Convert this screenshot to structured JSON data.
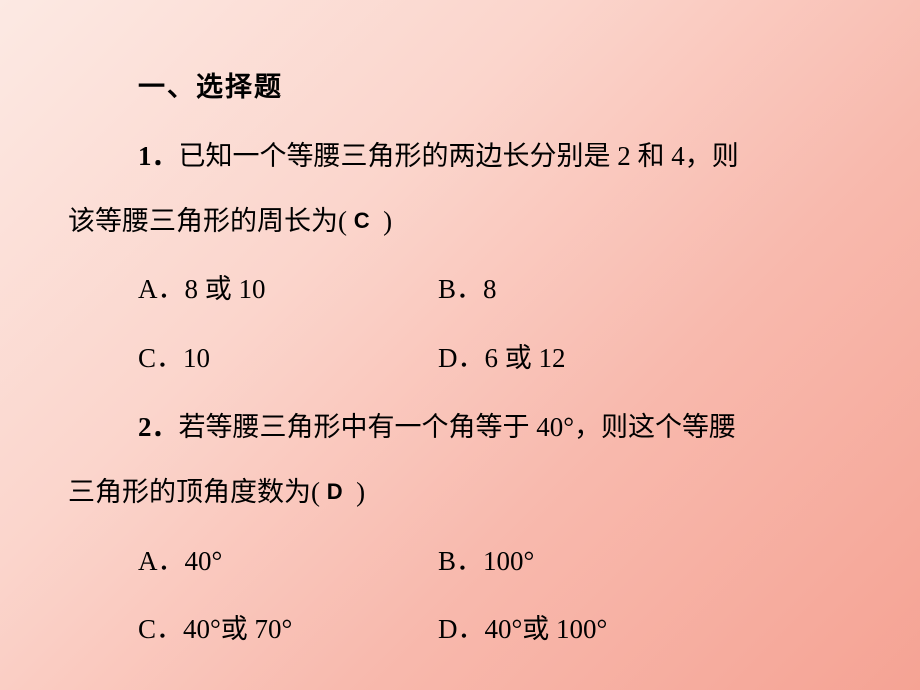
{
  "section_title": "一、选择题",
  "q1": {
    "number": "1．",
    "text_part1": "已知一个等腰三角形的两边长分别是 ",
    "num1": "2",
    "text_part2": " 和 ",
    "num2": "4",
    "text_part3": "，则",
    "text_line2": "该等腰三角形的周长为(",
    "answer": "C",
    "text_close": ")",
    "opt_a": "A．8 或 10",
    "opt_b": "B．8",
    "opt_c": "C．10",
    "opt_d": "D．6 或 12"
  },
  "q2": {
    "number": "2．",
    "text_part1": "若等腰三角形中有一个角等于 ",
    "angle1": "40°",
    "text_part2": "，则这个等腰",
    "text_line2": "三角形的顶角度数为(",
    "answer": "D",
    "text_close": ")",
    "opt_a": "A．40°",
    "opt_b": "B．100°",
    "opt_c": "C．40°或 70°",
    "opt_d": "D．40°或 100°"
  }
}
